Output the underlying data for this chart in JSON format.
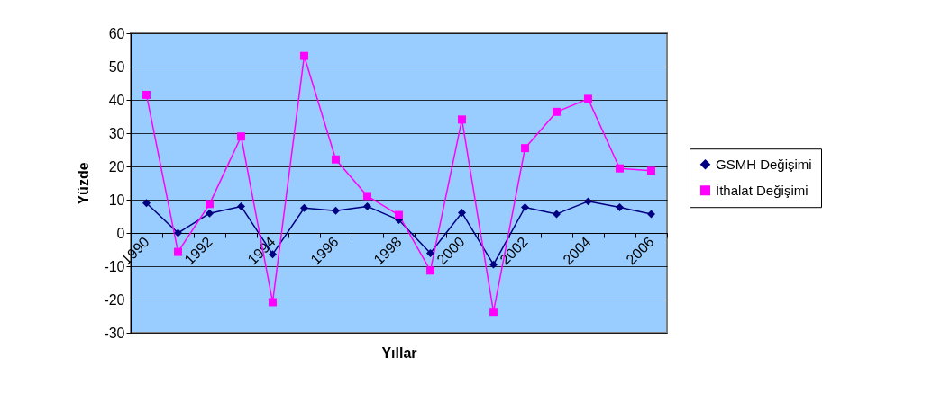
{
  "chart_data": {
    "type": "line",
    "xlabel": "Yıllar",
    "ylabel": "Yüzde",
    "categories": [
      "1990",
      null,
      "1992",
      null,
      "1994",
      null,
      "1996",
      null,
      "1998",
      null,
      "2000",
      null,
      "2002",
      null,
      "2004",
      null,
      "2006"
    ],
    "series": [
      {
        "name": "GSMH Değişimi",
        "color": "#000080",
        "marker": "diamond",
        "values": [
          9.0,
          0,
          5.9,
          8.0,
          -6.4,
          7.5,
          6.7,
          8.0,
          3.9,
          -6.1,
          6.1,
          -9.5,
          7.7,
          5.7,
          9.5,
          7.7,
          5.7
        ]
      },
      {
        "name": "İthalat Değişimi",
        "color": "#ff00ff",
        "marker": "square",
        "values": [
          41.5,
          -5.7,
          8.7,
          29,
          -20.8,
          53.2,
          22.1,
          11.1,
          5.4,
          -11.3,
          34.1,
          -23.7,
          25.5,
          36.4,
          40.3,
          19.4,
          18.7
        ]
      }
    ],
    "ylim": [
      -30,
      60
    ],
    "yticks": [
      -30,
      -20,
      -10,
      0,
      10,
      20,
      30,
      40,
      50,
      60
    ],
    "grid": "y",
    "legend": "right"
  }
}
